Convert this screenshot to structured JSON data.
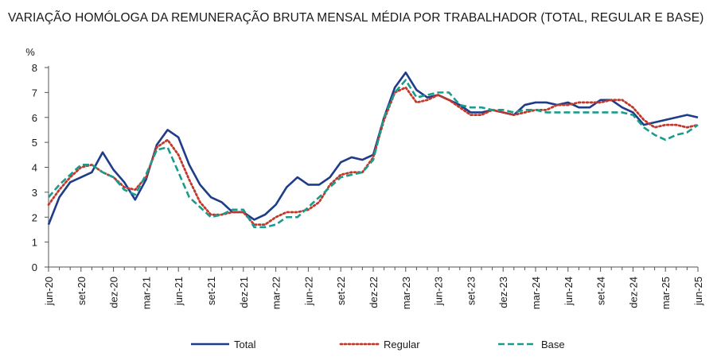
{
  "chart_data": {
    "type": "line",
    "title": "VARIAÇÃO HOMÓLOGA DA REMUNERAÇÃO BRUTA MENSAL MÉDIA POR TRABALHADOR (TOTAL, REGULAR E BASE)",
    "ylabel": "%",
    "xlabel": "",
    "ylim": [
      0,
      8
    ],
    "y_ticks": [
      "0",
      "1",
      "2",
      "3",
      "4",
      "5",
      "6",
      "7",
      "8"
    ],
    "grid": false,
    "legend_position": "bottom",
    "x_tick_labels": [
      "jun-20",
      "set-20",
      "dez-20",
      "mar-21",
      "jun-21",
      "set-21",
      "dez-21",
      "mar-22",
      "jun-22",
      "set-22",
      "dez-22",
      "mar-23",
      "jun-23",
      "set-23",
      "dez-23",
      "mar-24",
      "jun-24",
      "set-24",
      "dez-24",
      "mar-25",
      "jun-25"
    ],
    "x": [
      "jun-20",
      "jul-20",
      "ago-20",
      "set-20",
      "out-20",
      "nov-20",
      "dez-20",
      "jan-21",
      "fev-21",
      "mar-21",
      "abr-21",
      "mai-21",
      "jun-21",
      "jul-21",
      "ago-21",
      "set-21",
      "out-21",
      "nov-21",
      "dez-21",
      "jan-22",
      "fev-22",
      "mar-22",
      "abr-22",
      "mai-22",
      "jun-22",
      "jul-22",
      "ago-22",
      "set-22",
      "out-22",
      "nov-22",
      "dez-22",
      "jan-23",
      "fev-23",
      "mar-23",
      "abr-23",
      "mai-23",
      "jun-23",
      "jul-23",
      "ago-23",
      "set-23",
      "out-23",
      "nov-23",
      "dez-23",
      "jan-24",
      "fev-24",
      "mar-24",
      "abr-24",
      "mai-24",
      "jun-24",
      "jul-24",
      "ago-24",
      "set-24",
      "out-24",
      "nov-24",
      "dez-24",
      "jan-25",
      "fev-25",
      "mar-25",
      "abr-25",
      "mai-25",
      "jun-25"
    ],
    "series": [
      {
        "name": "Total",
        "color": "#1f3c88",
        "style": "solid",
        "values": [
          1.7,
          2.8,
          3.4,
          3.6,
          3.8,
          4.6,
          3.9,
          3.4,
          2.7,
          3.5,
          4.9,
          5.5,
          5.2,
          4.1,
          3.3,
          2.8,
          2.6,
          2.2,
          2.2,
          1.9,
          2.1,
          2.5,
          3.2,
          3.6,
          3.3,
          3.3,
          3.6,
          4.2,
          4.4,
          4.3,
          4.5,
          6.0,
          7.2,
          7.8,
          7.1,
          6.8,
          6.9,
          6.7,
          6.5,
          6.2,
          6.2,
          6.3,
          6.2,
          6.1,
          6.5,
          6.6,
          6.6,
          6.5,
          6.6,
          6.4,
          6.4,
          6.7,
          6.7,
          6.4,
          6.2,
          5.7,
          5.8,
          5.9,
          6.0,
          6.1,
          6.0
        ]
      },
      {
        "name": "Regular",
        "color": "#c0392b",
        "style": "dotted",
        "values": [
          2.5,
          3.1,
          3.6,
          4.0,
          4.1,
          3.8,
          3.6,
          3.2,
          3.1,
          3.6,
          4.8,
          5.1,
          4.5,
          3.5,
          2.6,
          2.1,
          2.1,
          2.2,
          2.2,
          1.7,
          1.7,
          2.0,
          2.2,
          2.2,
          2.3,
          2.6,
          3.3,
          3.7,
          3.8,
          3.8,
          4.4,
          5.9,
          7.0,
          7.2,
          6.6,
          6.7,
          6.9,
          6.7,
          6.4,
          6.1,
          6.1,
          6.3,
          6.2,
          6.1,
          6.2,
          6.3,
          6.3,
          6.5,
          6.5,
          6.6,
          6.6,
          6.6,
          6.7,
          6.7,
          6.4,
          5.9,
          5.6,
          5.7,
          5.7,
          5.6,
          5.7
        ]
      },
      {
        "name": "Base",
        "color": "#1a9c8c",
        "style": "dashed",
        "values": [
          2.8,
          3.3,
          3.7,
          4.1,
          4.1,
          3.8,
          3.6,
          3.1,
          2.9,
          3.7,
          4.7,
          4.8,
          3.8,
          2.8,
          2.4,
          2.0,
          2.1,
          2.3,
          2.3,
          1.6,
          1.6,
          1.7,
          2.0,
          2.0,
          2.4,
          2.8,
          3.2,
          3.6,
          3.7,
          3.8,
          4.3,
          6.0,
          7.0,
          7.5,
          6.8,
          6.9,
          7.0,
          7.0,
          6.5,
          6.4,
          6.4,
          6.3,
          6.3,
          6.2,
          6.3,
          6.3,
          6.2,
          6.2,
          6.2,
          6.2,
          6.2,
          6.2,
          6.2,
          6.2,
          6.1,
          5.6,
          5.3,
          5.1,
          5.3,
          5.4,
          5.7
        ]
      }
    ]
  }
}
